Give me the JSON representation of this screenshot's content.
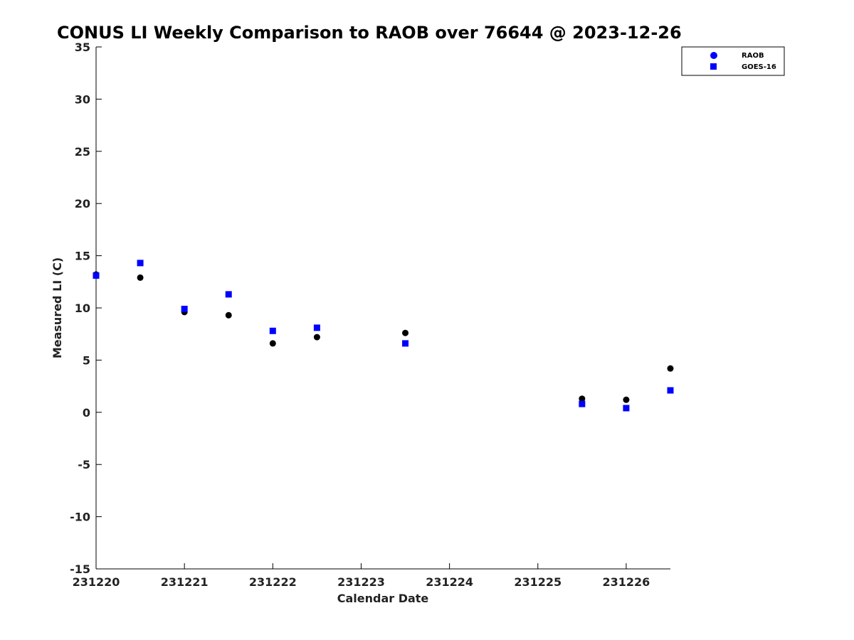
{
  "chart_data": {
    "type": "scatter",
    "title": "CONUS LI Weekly Comparison to RAOB over 76644 @ 2023-12-26",
    "xlabel": "Calendar Date",
    "ylabel": "Measured LI (C)",
    "xlim": [
      0,
      6.5
    ],
    "ylim": [
      -15,
      35
    ],
    "x_ticks": [
      0,
      1,
      2,
      3,
      4,
      5,
      6
    ],
    "x_tick_labels": [
      "231220",
      "231221",
      "231222",
      "231223",
      "231224",
      "231225",
      "231226"
    ],
    "y_ticks": [
      -15,
      -10,
      -5,
      0,
      5,
      10,
      15,
      20,
      25,
      30,
      35
    ],
    "grid": false,
    "legend_position": "top-right",
    "series": [
      {
        "name": "RAOB",
        "marker": "circle",
        "color": "#000000",
        "legend_color": "#0000ff",
        "x": [
          0,
          0.5,
          1,
          1.5,
          2,
          2.5,
          3.5,
          5.5,
          6,
          6.5
        ],
        "y": [
          13.2,
          12.9,
          9.6,
          9.3,
          6.6,
          7.2,
          7.6,
          1.3,
          1.2,
          4.2
        ]
      },
      {
        "name": "GOES-16",
        "marker": "square",
        "color": "#0000ff",
        "x": [
          0,
          0.5,
          1,
          1.5,
          2,
          2.5,
          3.5,
          5.5,
          6,
          6.5
        ],
        "y": [
          13.1,
          14.3,
          9.9,
          11.3,
          7.8,
          8.1,
          6.6,
          0.8,
          0.4,
          2.1
        ]
      }
    ]
  }
}
